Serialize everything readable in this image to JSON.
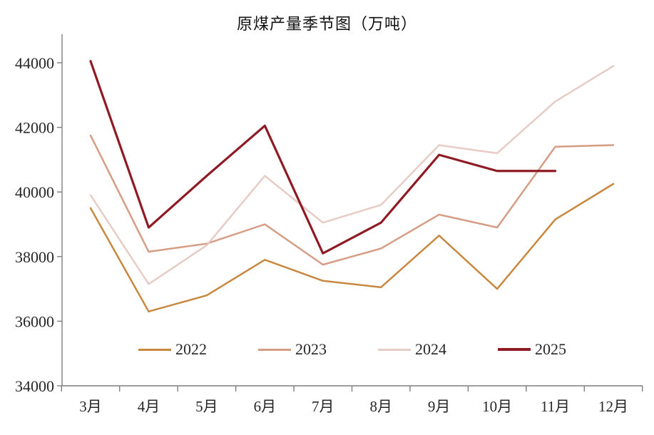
{
  "chart_data": {
    "type": "line",
    "title": "原煤产量季节图（万吨）",
    "categories": [
      "3月",
      "4月",
      "5月",
      "6月",
      "7月",
      "8月",
      "9月",
      "10月",
      "11月",
      "12月"
    ],
    "series": [
      {
        "name": "2022",
        "color": "#C8883F",
        "emphasis": false,
        "values": [
          39500,
          36300,
          36800,
          37900,
          37250,
          37050,
          38650,
          37000,
          39150,
          40250
        ]
      },
      {
        "name": "2023",
        "color": "#D69D85",
        "emphasis": false,
        "values": [
          41750,
          38150,
          38400,
          39000,
          37750,
          38250,
          39300,
          38900,
          41400,
          41450
        ]
      },
      {
        "name": "2024",
        "color": "#E7CCC6",
        "emphasis": false,
        "values": [
          39900,
          37150,
          38350,
          40500,
          39050,
          39600,
          41450,
          41200,
          42800,
          43900
        ]
      },
      {
        "name": "2025",
        "color": "#8E1A23",
        "emphasis": true,
        "values": [
          44050,
          38900,
          40500,
          42050,
          38100,
          39050,
          41150,
          40650,
          40650,
          null
        ]
      }
    ],
    "ylim": [
      34000,
      44000
    ],
    "yticks": [
      34000,
      36000,
      38000,
      40000,
      42000,
      44000
    ],
    "grid": false,
    "legend_position": "bottom-center-inside",
    "axis_color": "#7F7F7F",
    "text_color": "#262626"
  }
}
